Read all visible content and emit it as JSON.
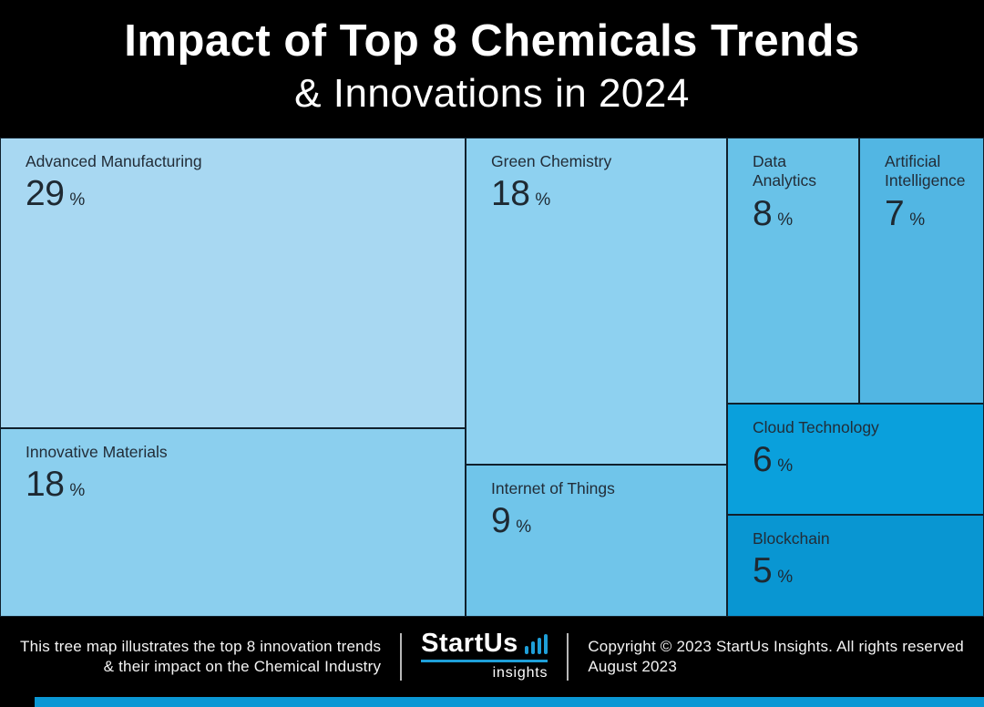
{
  "header": {
    "title_line1": "Impact of Top 8 Chemicals Trends",
    "title_line2": "& Innovations in 2024"
  },
  "chart_data": {
    "type": "treemap",
    "title": "Impact of Top 8 Chemicals Trends & Innovations in 2024",
    "unit": "%",
    "items": [
      {
        "label": "Advanced Manufacturing",
        "value": 29,
        "unit": "%",
        "color": "#a8d8f2"
      },
      {
        "label": "Innovative Materials",
        "value": 18,
        "unit": "%",
        "color": "#8bcfee"
      },
      {
        "label": "Green Chemistry",
        "value": 18,
        "unit": "%",
        "color": "#8ed1f0"
      },
      {
        "label": "Internet of Things",
        "value": 9,
        "unit": "%",
        "color": "#70c5ea"
      },
      {
        "label": "Data Analytics",
        "value": 8,
        "unit": "%",
        "color": "#69c2e8"
      },
      {
        "label": "Artificial Intelligence",
        "value": 7,
        "unit": "%",
        "color": "#52b6e3"
      },
      {
        "label": "Cloud Technology",
        "value": 6,
        "unit": "%",
        "color": "#0aa0dc"
      },
      {
        "label": "Blockchain",
        "value": 5,
        "unit": "%",
        "color": "#0996d2"
      }
    ]
  },
  "footer": {
    "caption_line1": "This tree map illustrates the top 8 innovation trends",
    "caption_line2": "& their impact on the Chemical Industry",
    "logo": {
      "word": "StartUs",
      "sub": "insights",
      "icon": "bar-chart-icon"
    },
    "copyright_line1": "Copyright © 2023 StartUs Insights. All rights reserved",
    "copyright_line2": "August 2023"
  },
  "colors": {
    "background": "#000000",
    "accent_bar": "#0a97d4",
    "logo_blue": "#1e9fd8",
    "cell_border": "#10202c",
    "cell_text": "#1e2932",
    "title_text": "#ffffff"
  }
}
